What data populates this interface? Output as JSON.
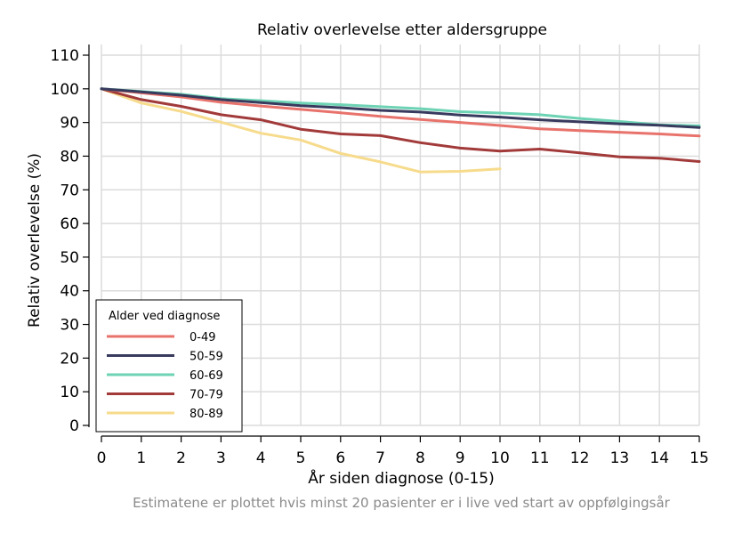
{
  "chart_data": {
    "type": "line",
    "title": "Relativ overlevelse etter aldersgruppe",
    "xlabel": "År siden diagnose (0-15)",
    "ylabel": "Relativ overlevelse (%)",
    "footnote": "Estimatene er plottet hvis minst 20 pasienter er i live ved start av oppfølgingsår",
    "xlim": [
      0,
      15
    ],
    "ylim": [
      0,
      110
    ],
    "xticks": [
      0,
      1,
      2,
      3,
      4,
      5,
      6,
      7,
      8,
      9,
      10,
      11,
      12,
      13,
      14,
      15
    ],
    "yticks": [
      0,
      10,
      20,
      30,
      40,
      50,
      60,
      70,
      80,
      90,
      100,
      110
    ],
    "grid": true,
    "legend": {
      "title": "Alder ved diagnose",
      "placement": "bottom-left"
    },
    "series": [
      {
        "name": "0-49",
        "color": "#e8736c",
        "x": [
          0,
          1,
          2,
          3,
          4,
          5,
          6,
          7,
          8,
          9,
          10,
          11,
          12,
          13,
          14,
          15
        ],
        "values": [
          100,
          98.8,
          97.6,
          96.0,
          94.9,
          93.9,
          92.9,
          91.8,
          90.9,
          90.0,
          89.1,
          88.1,
          87.6,
          87.1,
          86.6,
          86.0
        ]
      },
      {
        "name": "50-59",
        "color": "#383a5e",
        "x": [
          0,
          1,
          2,
          3,
          4,
          5,
          6,
          7,
          8,
          9,
          10,
          11,
          12,
          13,
          14,
          15
        ],
        "values": [
          100,
          99.1,
          98.1,
          96.8,
          95.9,
          95.0,
          94.4,
          93.6,
          93.1,
          92.2,
          91.6,
          90.8,
          90.2,
          89.6,
          89.2,
          88.5
        ]
      },
      {
        "name": "60-69",
        "color": "#6ed3b4",
        "x": [
          0,
          1,
          2,
          3,
          4,
          5,
          6,
          7,
          8,
          9,
          10,
          11,
          12,
          13,
          14,
          15
        ],
        "values": [
          100,
          99.2,
          98.4,
          97.1,
          96.5,
          95.8,
          95.3,
          94.7,
          94.1,
          93.2,
          92.8,
          92.3,
          91.2,
          90.3,
          89.3,
          89.0
        ]
      },
      {
        "name": "70-79",
        "color": "#a23a3a",
        "x": [
          0,
          1,
          2,
          3,
          4,
          5,
          6,
          7,
          8,
          9,
          10,
          11,
          12,
          13,
          14,
          15
        ],
        "values": [
          100,
          96.8,
          94.8,
          92.3,
          90.8,
          88.0,
          86.6,
          86.1,
          84.0,
          82.4,
          81.5,
          82.1,
          81.0,
          79.8,
          79.4,
          78.4
        ]
      },
      {
        "name": "80-89",
        "color": "#f7db8c",
        "x": [
          0,
          1,
          2,
          3,
          4,
          5,
          6,
          7,
          8,
          9,
          10
        ],
        "values": [
          100,
          95.8,
          93.3,
          90.1,
          86.8,
          84.8,
          80.8,
          78.3,
          75.3,
          75.5,
          76.2
        ]
      }
    ]
  }
}
